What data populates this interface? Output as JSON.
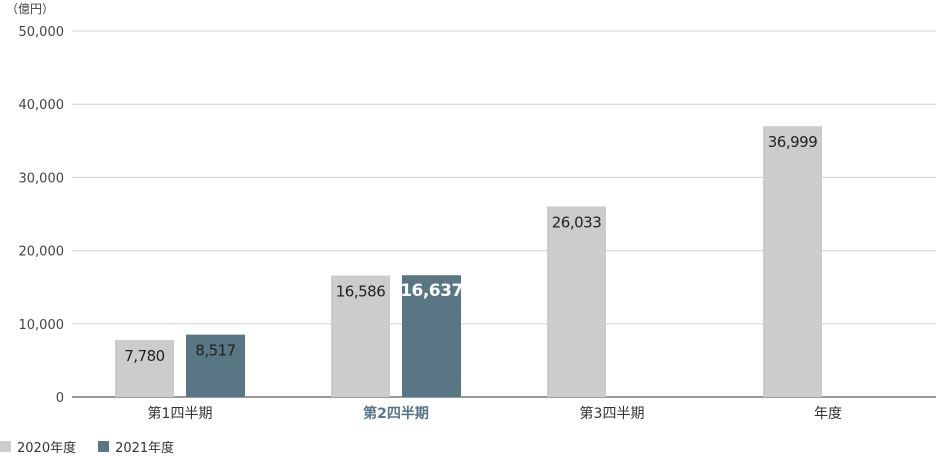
{
  "chart_data": {
    "type": "bar",
    "unit_label": "（億円）",
    "categories": [
      "第1四半期",
      "第2四半期",
      "第3四半期",
      "年度"
    ],
    "highlight_category": "第2四半期",
    "series": [
      {
        "name": "2020年度",
        "color": "#cccccc",
        "values": [
          7780,
          16586,
          26033,
          36999
        ],
        "labels": [
          "7,780",
          "16,586",
          "26,033",
          "36,999"
        ]
      },
      {
        "name": "2021年度",
        "color": "#587684",
        "values": [
          8517,
          16637,
          null,
          null
        ],
        "labels": [
          "8,517",
          "16,637",
          "",
          ""
        ]
      }
    ],
    "yticks": [
      0,
      10000,
      20000,
      30000,
      40000,
      50000
    ],
    "ytick_labels": [
      "0",
      "10,000",
      "20,000",
      "30,000",
      "40,000",
      "50,000"
    ],
    "ylim": [
      0,
      50000
    ],
    "grid": true,
    "legend_position": "bottom-left"
  }
}
